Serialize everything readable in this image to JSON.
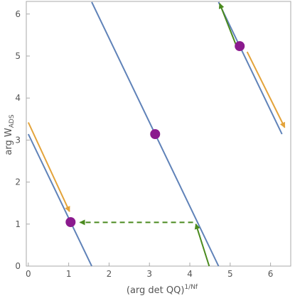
{
  "chart_data": {
    "type": "line",
    "xlabel_main": "(arg det QQ)",
    "xlabel_sup": "1/Nf",
    "ylabel_main": "arg W",
    "ylabel_sub": "ADS",
    "xlim": [
      -0.05,
      6.5
    ],
    "ylim": [
      0,
      6.3
    ],
    "x_ticks": [
      0,
      1,
      2,
      3,
      4,
      5,
      6
    ],
    "y_ticks": [
      0,
      1,
      2,
      3,
      4,
      5,
      6
    ],
    "colors": {
      "line": "#5f82b8",
      "point": "#8b1a8e",
      "orange_arrow": "#e3a33a",
      "green_arrow": "#4a8a1e",
      "frame": "#aaaaaa"
    },
    "lines": [
      {
        "x": [
          0,
          1.571
        ],
        "y": [
          3.1416,
          0
        ]
      },
      {
        "x": [
          1.571,
          4.712
        ],
        "y": [
          6.2832,
          0
        ]
      },
      {
        "x": [
          4.712,
          6.2832
        ],
        "y": [
          6.2832,
          3.1416
        ]
      }
    ],
    "points": [
      {
        "x": 1.0472,
        "y": 1.0472
      },
      {
        "x": 3.1416,
        "y": 3.1416
      },
      {
        "x": 5.236,
        "y": 5.236
      }
    ],
    "arrows": [
      {
        "color": "orange_arrow",
        "style": "solid",
        "from": [
          0.0,
          3.42
        ],
        "to": [
          1.02,
          1.3
        ]
      },
      {
        "color": "orange_arrow",
        "style": "solid",
        "from": [
          5.42,
          5.1
        ],
        "to": [
          6.35,
          3.3
        ]
      },
      {
        "color": "green_arrow",
        "style": "solid",
        "from": [
          4.48,
          0
        ],
        "to": [
          4.15,
          1.0
        ]
      },
      {
        "color": "green_arrow",
        "style": "solid",
        "from": [
          5.15,
          5.25
        ],
        "to": [
          4.74,
          6.25
        ]
      },
      {
        "color": "green_arrow",
        "style": "dashed",
        "from": [
          4.08,
          1.04
        ],
        "to": [
          1.28,
          1.04
        ]
      }
    ]
  }
}
